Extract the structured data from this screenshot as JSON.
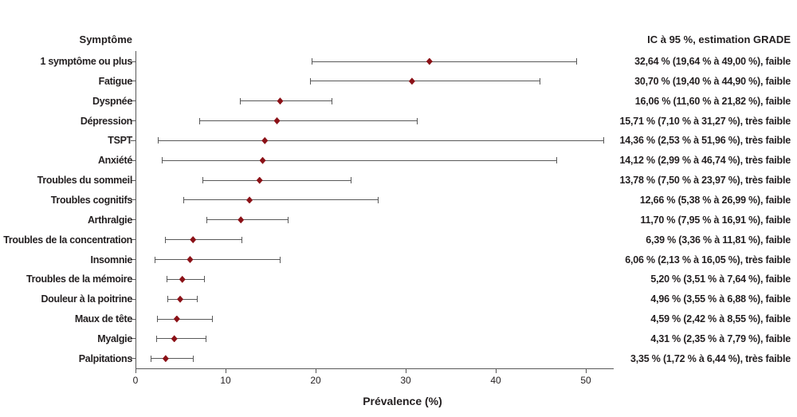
{
  "chart_data": {
    "type": "scatter",
    "subtype": "forest-plot",
    "title": "",
    "xlabel": "Prévalence (%)",
    "ylabel": "",
    "xlim": [
      0,
      53
    ],
    "x_ticks": [
      0,
      10,
      20,
      30,
      40,
      50
    ],
    "grid": false,
    "legend": "none",
    "left_header": "Symptôme",
    "right_header": "IC à 95 %, estimation GRADE",
    "marker_color": "#8b1117",
    "line_color": "#595959",
    "text_color": "#231f20",
    "rows": [
      {
        "label": "1 symptôme ou plus",
        "estimate": 32.64,
        "ci_low": 19.64,
        "ci_high": 49.0,
        "grade": "faible",
        "text": "32,64 % (19,64 % à 49,00 %), faible"
      },
      {
        "label": "Fatigue",
        "estimate": 30.7,
        "ci_low": 19.4,
        "ci_high": 44.9,
        "grade": "faible",
        "text": "30,70 % (19,40 % à 44,90 %), faible"
      },
      {
        "label": "Dyspnée",
        "estimate": 16.06,
        "ci_low": 11.6,
        "ci_high": 21.82,
        "grade": "faible",
        "text": "16,06 % (11,60 % à 21,82 %), faible"
      },
      {
        "label": "Dépression",
        "estimate": 15.71,
        "ci_low": 7.1,
        "ci_high": 31.27,
        "grade": "très faible",
        "text": "15,71 % (7,10 % à 31,27 %), très faible"
      },
      {
        "label": "TSPT",
        "estimate": 14.36,
        "ci_low": 2.53,
        "ci_high": 51.96,
        "grade": "très faible",
        "text": "14,36 % (2,53 % à 51,96 %), très faible"
      },
      {
        "label": "Anxiété",
        "estimate": 14.12,
        "ci_low": 2.99,
        "ci_high": 46.74,
        "grade": "très faible",
        "text": "14,12 % (2,99 % à 46,74 %), très faible"
      },
      {
        "label": "Troubles du sommeil",
        "estimate": 13.78,
        "ci_low": 7.5,
        "ci_high": 23.97,
        "grade": "très faible",
        "text": "13,78 % (7,50 % à 23,97 %), très faible"
      },
      {
        "label": "Troubles cognitifs",
        "estimate": 12.66,
        "ci_low": 5.38,
        "ci_high": 26.99,
        "grade": "faible",
        "text": "12,66 % (5,38 % à 26,99 %), faible"
      },
      {
        "label": "Arthralgie",
        "estimate": 11.7,
        "ci_low": 7.95,
        "ci_high": 16.91,
        "grade": "faible",
        "text": "11,70 % (7,95 % à 16,91 %), faible"
      },
      {
        "label": "Troubles de la concentration",
        "estimate": 6.39,
        "ci_low": 3.36,
        "ci_high": 11.81,
        "grade": "faible",
        "text": "6,39 % (3,36 % à 11,81 %), faible"
      },
      {
        "label": "Insomnie",
        "estimate": 6.06,
        "ci_low": 2.13,
        "ci_high": 16.05,
        "grade": "très faible",
        "text": "6,06 % (2,13 % à 16,05 %), très faible"
      },
      {
        "label": "Troubles de la mémoire",
        "estimate": 5.2,
        "ci_low": 3.51,
        "ci_high": 7.64,
        "grade": "faible",
        "text": "5,20 % (3,51 % à 7,64 %), faible"
      },
      {
        "label": "Douleur à la poitrine",
        "estimate": 4.96,
        "ci_low": 3.55,
        "ci_high": 6.88,
        "grade": "faible",
        "text": "4,96 % (3,55 % à 6,88 %), faible"
      },
      {
        "label": "Maux de tête",
        "estimate": 4.59,
        "ci_low": 2.42,
        "ci_high": 8.55,
        "grade": "faible",
        "text": "4,59 % (2,42 % à 8,55 %), faible"
      },
      {
        "label": "Myalgie",
        "estimate": 4.31,
        "ci_low": 2.35,
        "ci_high": 7.79,
        "grade": "faible",
        "text": "4,31 % (2,35 % à 7,79 %), faible"
      },
      {
        "label": "Palpitations",
        "estimate": 3.35,
        "ci_low": 1.72,
        "ci_high": 6.44,
        "grade": "très faible",
        "text": "3,35 % (1,72 % à 6,44 %), très faible"
      }
    ]
  }
}
